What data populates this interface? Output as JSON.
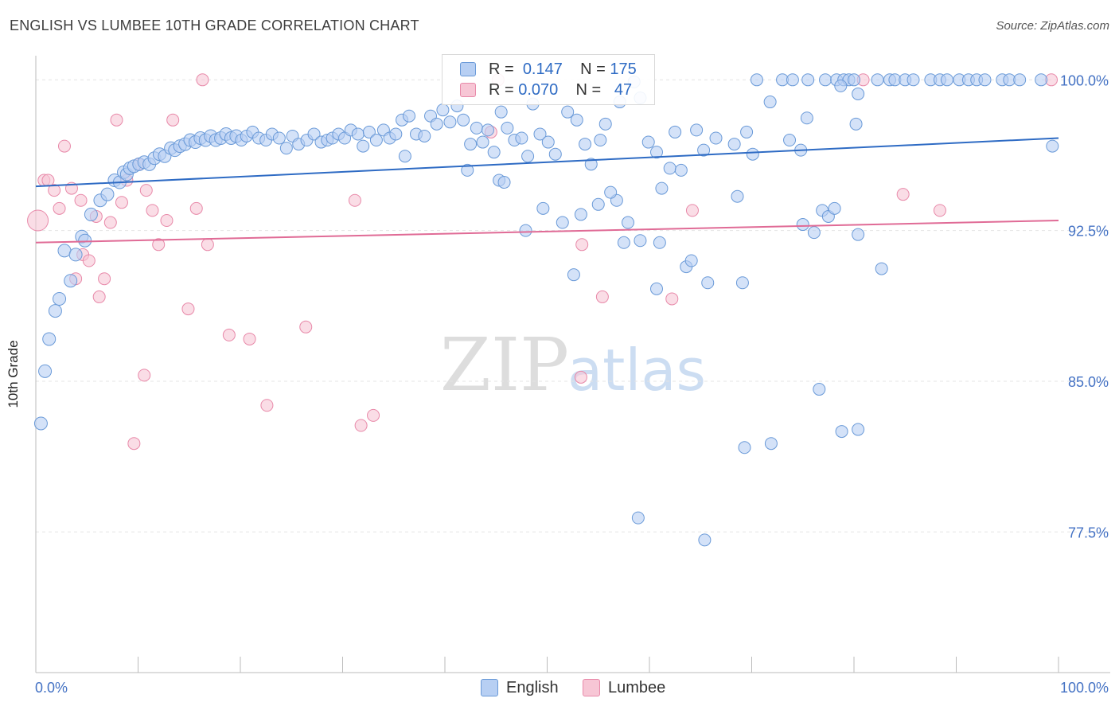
{
  "title": "ENGLISH VS LUMBEE 10TH GRADE CORRELATION CHART",
  "source": "Source: ZipAtlas.com",
  "watermark": {
    "zip": "ZIP",
    "atlas": "atlas"
  },
  "legend": {
    "rows": [
      {
        "r_label": "R =",
        "r_value": "0.147",
        "n_label": "N =",
        "n_value": "175"
      },
      {
        "r_label": "R =",
        "r_value": "0.070",
        "n_label": "N =",
        "n_value": "47"
      }
    ]
  },
  "colors": {
    "english_fill": "#b7cff3",
    "english_stroke": "#6a9ad8",
    "english_line": "#2e6bc4",
    "lumbee_fill": "#f7c6d5",
    "lumbee_stroke": "#e889a9",
    "lumbee_line": "#e06b96",
    "tick_text": "#4472c4",
    "grid": "#e4e4e4"
  },
  "chart_data": {
    "type": "scatter",
    "title": "ENGLISH VS LUMBEE 10TH GRADE CORRELATION CHART",
    "xlabel": "",
    "ylabel": "10th Grade",
    "xlim": [
      0,
      100
    ],
    "ylim": [
      70.5,
      101.2
    ],
    "x_tick_labels": [
      "0.0%",
      "100.0%"
    ],
    "y_ticks": [
      100.0,
      92.5,
      85.0,
      77.5
    ],
    "y_tick_labels": [
      "100.0%",
      "92.5%",
      "85.0%",
      "77.5%"
    ],
    "grid": true,
    "legend_position": "top-center",
    "series": [
      {
        "name": "English",
        "R": 0.147,
        "N": 175,
        "trend": {
          "x": [
            0,
            100
          ],
          "y": [
            94.7,
            97.1
          ]
        },
        "points": [
          [
            0.5,
            82.9,
            1
          ],
          [
            0.9,
            85.5,
            1
          ],
          [
            1.3,
            87.1,
            1
          ],
          [
            1.9,
            88.5,
            1
          ],
          [
            2.3,
            89.1,
            1
          ],
          [
            3.4,
            90.0,
            1
          ],
          [
            2.8,
            91.5,
            1
          ],
          [
            3.9,
            91.3,
            1
          ],
          [
            4.5,
            92.2,
            1
          ],
          [
            4.8,
            92.0,
            1
          ],
          [
            5.4,
            93.3,
            1
          ],
          [
            6.3,
            94.0,
            1
          ],
          [
            7.0,
            94.3,
            1
          ],
          [
            7.7,
            95.0,
            1
          ],
          [
            8.2,
            94.9,
            1
          ],
          [
            8.6,
            95.4,
            1
          ],
          [
            8.9,
            95.3,
            1
          ],
          [
            9.2,
            95.6,
            1
          ],
          [
            9.6,
            95.7,
            1
          ],
          [
            10.1,
            95.8,
            1
          ],
          [
            10.6,
            95.9,
            1
          ],
          [
            11.1,
            95.8,
            1
          ],
          [
            11.6,
            96.1,
            1
          ],
          [
            12.1,
            96.3,
            1
          ],
          [
            12.6,
            96.2,
            1
          ],
          [
            13.2,
            96.6,
            1
          ],
          [
            13.6,
            96.5,
            1
          ],
          [
            14.1,
            96.7,
            1
          ],
          [
            14.6,
            96.8,
            1
          ],
          [
            15.1,
            97.0,
            1
          ],
          [
            15.6,
            96.9,
            1
          ],
          [
            16.1,
            97.1,
            1
          ],
          [
            16.6,
            97.0,
            1
          ],
          [
            17.1,
            97.2,
            1
          ],
          [
            17.6,
            97.0,
            1
          ],
          [
            18.1,
            97.1,
            1
          ],
          [
            18.6,
            97.3,
            1
          ],
          [
            19.1,
            97.1,
            1
          ],
          [
            19.6,
            97.2,
            1
          ],
          [
            20.1,
            97.0,
            0.7
          ],
          [
            20.6,
            97.2,
            0.7
          ],
          [
            21.2,
            97.4,
            0.7
          ],
          [
            21.8,
            97.1,
            0.7
          ],
          [
            22.5,
            97.0,
            0.7
          ],
          [
            23.1,
            97.3,
            0.7
          ],
          [
            23.8,
            97.1,
            0.7
          ],
          [
            24.5,
            96.6,
            0.7
          ],
          [
            25.1,
            97.2,
            0.7
          ],
          [
            25.7,
            96.8,
            0.7
          ],
          [
            26.5,
            97.0,
            0.7
          ],
          [
            27.2,
            97.3,
            0.7
          ],
          [
            27.9,
            96.9,
            0.7
          ],
          [
            28.5,
            97.0,
            0.7
          ],
          [
            29.0,
            97.1,
            0.7
          ],
          [
            29.6,
            97.3,
            0.7
          ],
          [
            30.2,
            97.1,
            0.7
          ],
          [
            30.8,
            97.5,
            0.7
          ],
          [
            31.5,
            97.3,
            0.7
          ],
          [
            32.0,
            96.7,
            0.7
          ],
          [
            32.6,
            97.4,
            0.7
          ],
          [
            33.3,
            97.0,
            0.7
          ],
          [
            34.0,
            97.5,
            0.7
          ],
          [
            34.6,
            97.1,
            0.7
          ],
          [
            35.2,
            97.3,
            0.7
          ],
          [
            35.8,
            98.0,
            0.7
          ],
          [
            36.5,
            98.2,
            0.7
          ],
          [
            36.1,
            96.2,
            0.7
          ],
          [
            37.2,
            97.3,
            0.7
          ],
          [
            38.0,
            97.2,
            0.7
          ],
          [
            38.6,
            98.2,
            0.7
          ],
          [
            39.2,
            97.8,
            0.7
          ],
          [
            39.8,
            98.5,
            0.7
          ],
          [
            40.5,
            97.9,
            0.7
          ],
          [
            41.2,
            98.7,
            0.7
          ],
          [
            41.8,
            98.0,
            0.7
          ],
          [
            42.5,
            96.8,
            0.7
          ],
          [
            43.1,
            97.6,
            0.7
          ],
          [
            43.7,
            96.9,
            0.7
          ],
          [
            44.2,
            97.5,
            0.7
          ],
          [
            44.8,
            96.4,
            0.7
          ],
          [
            45.5,
            98.4,
            0.7
          ],
          [
            46.1,
            97.6,
            0.7
          ],
          [
            46.8,
            97.0,
            0.7
          ],
          [
            47.5,
            97.1,
            0.7
          ],
          [
            48.1,
            96.2,
            0.7
          ],
          [
            48.6,
            98.8,
            0.7
          ],
          [
            49.3,
            97.3,
            0.7
          ],
          [
            50.1,
            96.9,
            0.7
          ],
          [
            50.8,
            96.3,
            0.7
          ],
          [
            52.0,
            98.4,
            0.7
          ],
          [
            52.9,
            98.0,
            0.7
          ],
          [
            53.7,
            96.8,
            0.7
          ],
          [
            55.2,
            97.0,
            0.7
          ],
          [
            56.8,
            94.0,
            0.7
          ],
          [
            58.5,
            99.9,
            0.7
          ],
          [
            59.1,
            99.1,
            0.7
          ],
          [
            57.1,
            98.9,
            0.7
          ],
          [
            54.3,
            95.8,
            0.7
          ],
          [
            56.2,
            94.4,
            0.7
          ],
          [
            42.2,
            95.5,
            0.7
          ],
          [
            45.3,
            95.0,
            0.7
          ],
          [
            45.8,
            94.9,
            0.7
          ],
          [
            47.9,
            92.5,
            0.7
          ],
          [
            51.5,
            92.9,
            0.7
          ],
          [
            49.6,
            93.6,
            0.7
          ],
          [
            55.0,
            93.8,
            0.7
          ],
          [
            53.3,
            93.3,
            0.7
          ],
          [
            57.9,
            92.9,
            0.7
          ],
          [
            57.5,
            91.9,
            0.7
          ],
          [
            61.0,
            91.9,
            0.7
          ],
          [
            55.7,
            97.8,
            0.7
          ],
          [
            59.9,
            96.9,
            0.7
          ],
          [
            60.7,
            96.4,
            0.7
          ],
          [
            62.5,
            97.4,
            0.7
          ],
          [
            65.3,
            96.5,
            0.7
          ],
          [
            69.5,
            97.4,
            0.7
          ],
          [
            70.1,
            96.3,
            0.7
          ],
          [
            70.5,
            100.0,
            0.7
          ],
          [
            73.0,
            100.0,
            0.7
          ],
          [
            74.0,
            100.0,
            0.7
          ],
          [
            75.5,
            100.0,
            0.7
          ],
          [
            77.2,
            100.0,
            0.7
          ],
          [
            78.3,
            100.0,
            0.7
          ],
          [
            79.0,
            100.0,
            0.7
          ],
          [
            79.5,
            100.0,
            0.7
          ],
          [
            80.0,
            100.0,
            0.7
          ],
          [
            82.3,
            100.0,
            0.7
          ],
          [
            83.5,
            100.0,
            0.7
          ],
          [
            84.0,
            100.0,
            0.7
          ],
          [
            85.0,
            100.0,
            0.7
          ],
          [
            85.8,
            100.0,
            0.7
          ],
          [
            87.5,
            100.0,
            0.7
          ],
          [
            88.4,
            100.0,
            0.7
          ],
          [
            89.1,
            100.0,
            0.7
          ],
          [
            90.3,
            100.0,
            0.7
          ],
          [
            91.2,
            100.0,
            0.7
          ],
          [
            92.0,
            100.0,
            0.7
          ],
          [
            92.8,
            100.0,
            0.7
          ],
          [
            94.5,
            100.0,
            0.7
          ],
          [
            95.2,
            100.0,
            0.7
          ],
          [
            96.2,
            100.0,
            0.7
          ],
          [
            98.3,
            100.0,
            0.7
          ],
          [
            78.7,
            99.7,
            0.7
          ],
          [
            80.4,
            99.3,
            0.7
          ],
          [
            71.8,
            98.9,
            0.7
          ],
          [
            75.4,
            98.1,
            0.7
          ],
          [
            80.2,
            97.8,
            0.7
          ],
          [
            73.7,
            97.0,
            0.7
          ],
          [
            64.6,
            97.5,
            0.7
          ],
          [
            66.5,
            97.1,
            0.7
          ],
          [
            68.3,
            96.8,
            0.7
          ],
          [
            62.0,
            95.6,
            0.7
          ],
          [
            63.1,
            95.5,
            0.7
          ],
          [
            61.2,
            94.6,
            0.7
          ],
          [
            68.6,
            94.2,
            0.7
          ],
          [
            74.8,
            96.5,
            0.7
          ],
          [
            76.9,
            93.5,
            0.7
          ],
          [
            77.5,
            93.2,
            0.7
          ],
          [
            78.1,
            93.6,
            0.7
          ],
          [
            75.0,
            92.8,
            0.7
          ],
          [
            76.1,
            92.4,
            0.7
          ],
          [
            80.4,
            92.3,
            0.7
          ],
          [
            82.7,
            90.6,
            0.7
          ],
          [
            63.6,
            90.7,
            0.7
          ],
          [
            65.7,
            89.9,
            0.7
          ],
          [
            69.1,
            89.9,
            0.7
          ],
          [
            60.7,
            89.6,
            0.7
          ],
          [
            64.1,
            91.0,
            0.7
          ],
          [
            52.6,
            90.3,
            0.7
          ],
          [
            59.1,
            92.0,
            0.7
          ],
          [
            76.6,
            84.6,
            0.7
          ],
          [
            78.8,
            82.5,
            0.7
          ],
          [
            80.4,
            82.6,
            0.7
          ],
          [
            69.3,
            81.7,
            0.7
          ],
          [
            71.9,
            81.9,
            0.7
          ],
          [
            58.9,
            78.2,
            0.7
          ],
          [
            65.4,
            77.1,
            0.7
          ],
          [
            99.4,
            96.7,
            0.7
          ]
        ]
      },
      {
        "name": "Lumbee",
        "R": 0.07,
        "N": 47,
        "trend": {
          "x": [
            0,
            100
          ],
          "y": [
            91.9,
            93.0
          ]
        },
        "points": [
          [
            0.2,
            93.0,
            1.5
          ],
          [
            0.8,
            95.0,
            0.7
          ],
          [
            1.2,
            95.0,
            0.7
          ],
          [
            1.8,
            94.5,
            0.7
          ],
          [
            2.3,
            93.6,
            0.7
          ],
          [
            2.8,
            96.7,
            0.7
          ],
          [
            3.5,
            94.6,
            0.7
          ],
          [
            3.9,
            90.1,
            0.7
          ],
          [
            4.4,
            94.0,
            0.7
          ],
          [
            4.6,
            91.3,
            0.7
          ],
          [
            5.2,
            91.0,
            0.7
          ],
          [
            5.9,
            93.2,
            0.7
          ],
          [
            6.2,
            89.2,
            0.7
          ],
          [
            6.7,
            90.1,
            0.7
          ],
          [
            7.3,
            92.9,
            0.7
          ],
          [
            7.9,
            98.0,
            0.7
          ],
          [
            8.4,
            93.9,
            0.7
          ],
          [
            8.9,
            95.0,
            0.7
          ],
          [
            9.6,
            81.9,
            0.7
          ],
          [
            10.1,
            95.8,
            0.7
          ],
          [
            10.6,
            85.3,
            0.7
          ],
          [
            10.8,
            94.5,
            0.7
          ],
          [
            11.4,
            93.5,
            0.7
          ],
          [
            12.0,
            91.8,
            0.7
          ],
          [
            12.8,
            93.0,
            0.7
          ],
          [
            13.4,
            98.0,
            0.7
          ],
          [
            14.9,
            88.6,
            0.7
          ],
          [
            15.7,
            93.6,
            0.7
          ],
          [
            16.3,
            100.0,
            0.7
          ],
          [
            16.8,
            91.8,
            0.7
          ],
          [
            18.9,
            87.3,
            0.7
          ],
          [
            20.9,
            87.1,
            0.7
          ],
          [
            22.6,
            83.8,
            0.7
          ],
          [
            26.4,
            87.7,
            0.7
          ],
          [
            31.2,
            94.0,
            0.7
          ],
          [
            31.8,
            82.8,
            0.7
          ],
          [
            33.0,
            83.3,
            0.7
          ],
          [
            44.5,
            97.4,
            0.7
          ],
          [
            45.2,
            100.0,
            0.7
          ],
          [
            53.3,
            85.2,
            0.7
          ],
          [
            53.4,
            91.8,
            0.7
          ],
          [
            55.4,
            89.2,
            0.7
          ],
          [
            62.2,
            89.1,
            0.7
          ],
          [
            64.2,
            93.5,
            0.7
          ],
          [
            80.9,
            100.0,
            0.7
          ],
          [
            84.8,
            94.3,
            0.7
          ],
          [
            88.4,
            93.5,
            0.7
          ],
          [
            99.3,
            100.0,
            0.7
          ]
        ]
      }
    ]
  }
}
